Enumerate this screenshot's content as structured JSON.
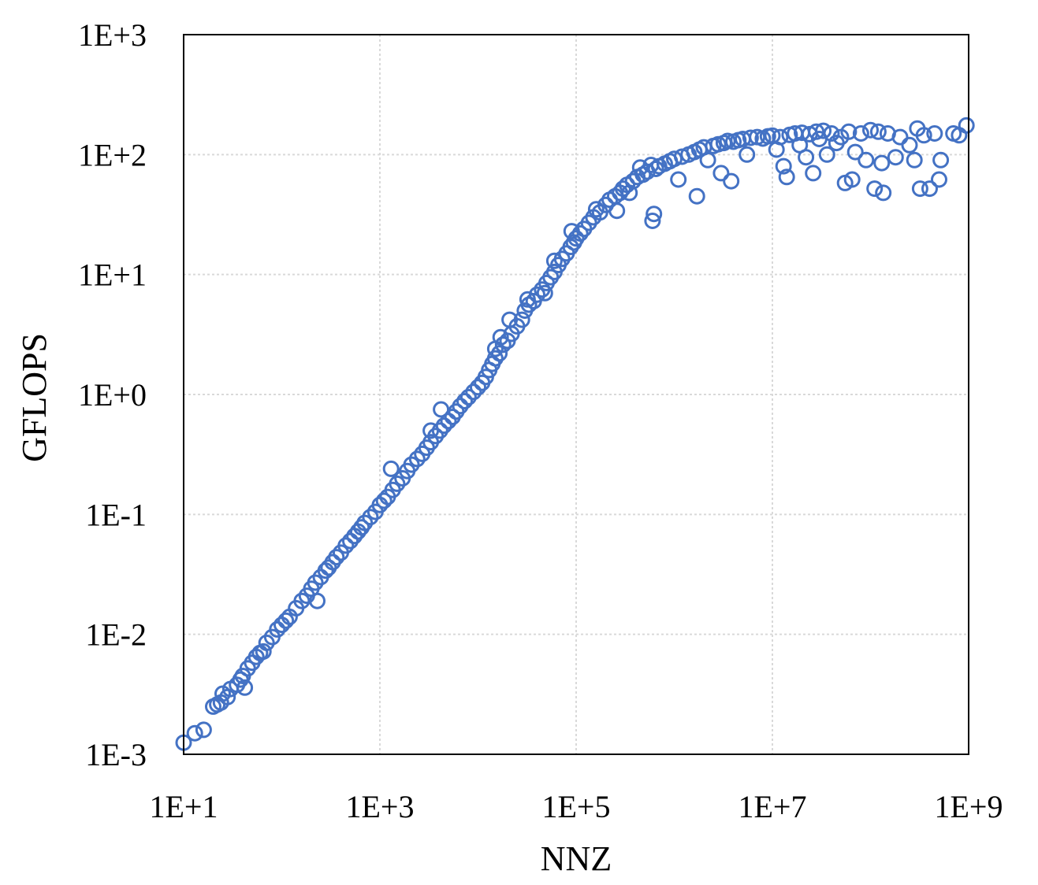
{
  "chart_data": {
    "type": "scatter",
    "xlabel": "NNZ",
    "ylabel": "GFLOPS",
    "x_scale": "log",
    "y_scale": "log",
    "xlim": [
      10,
      1000000000
    ],
    "ylim": [
      0.001,
      1000
    ],
    "x_ticks": [
      {
        "value": 10,
        "label": "1E+1"
      },
      {
        "value": 1000,
        "label": "1E+3"
      },
      {
        "value": 100000,
        "label": "1E+5"
      },
      {
        "value": 10000000,
        "label": "1E+7"
      },
      {
        "value": 1000000000,
        "label": "1E+9"
      }
    ],
    "y_ticks": [
      {
        "value": 0.001,
        "label": "1E-3"
      },
      {
        "value": 0.01,
        "label": "1E-2"
      },
      {
        "value": 0.1,
        "label": "1E-1"
      },
      {
        "value": 1,
        "label": "1E+0"
      },
      {
        "value": 10,
        "label": "1E+1"
      },
      {
        "value": 100,
        "label": "1E+2"
      },
      {
        "value": 1000,
        "label": "1E+3"
      }
    ],
    "grid": true,
    "marker_color": "#4472c4",
    "series": [
      {
        "points": [
          [
            10,
            0.00125
          ],
          [
            13,
            0.0015
          ],
          [
            16,
            0.0016
          ],
          [
            20,
            0.0025
          ],
          [
            22,
            0.0026
          ],
          [
            24,
            0.0027
          ],
          [
            25,
            0.0032
          ],
          [
            28,
            0.003
          ],
          [
            30,
            0.0035
          ],
          [
            35,
            0.0038
          ],
          [
            38,
            0.0042
          ],
          [
            40,
            0.0045
          ],
          [
            42,
            0.0036
          ],
          [
            45,
            0.0052
          ],
          [
            50,
            0.0058
          ],
          [
            55,
            0.0065
          ],
          [
            60,
            0.007
          ],
          [
            65,
            0.0072
          ],
          [
            70,
            0.0085
          ],
          [
            80,
            0.0095
          ],
          [
            90,
            0.011
          ],
          [
            100,
            0.012
          ],
          [
            110,
            0.013
          ],
          [
            120,
            0.014
          ],
          [
            140,
            0.0165
          ],
          [
            160,
            0.019
          ],
          [
            180,
            0.021
          ],
          [
            200,
            0.024
          ],
          [
            220,
            0.027
          ],
          [
            230,
            0.019
          ],
          [
            250,
            0.03
          ],
          [
            280,
            0.034
          ],
          [
            300,
            0.036
          ],
          [
            330,
            0.04
          ],
          [
            360,
            0.044
          ],
          [
            400,
            0.048
          ],
          [
            450,
            0.055
          ],
          [
            500,
            0.06
          ],
          [
            550,
            0.066
          ],
          [
            600,
            0.072
          ],
          [
            650,
            0.078
          ],
          [
            700,
            0.085
          ],
          [
            800,
            0.095
          ],
          [
            900,
            0.105
          ],
          [
            1000,
            0.12
          ],
          [
            1100,
            0.13
          ],
          [
            1200,
            0.14
          ],
          [
            1350,
            0.16
          ],
          [
            1500,
            0.18
          ],
          [
            1300,
            0.24
          ],
          [
            1700,
            0.2
          ],
          [
            1900,
            0.23
          ],
          [
            2100,
            0.26
          ],
          [
            2400,
            0.29
          ],
          [
            2700,
            0.32
          ],
          [
            3000,
            0.36
          ],
          [
            3300,
            0.4
          ],
          [
            3700,
            0.45
          ],
          [
            3300,
            0.5
          ],
          [
            4100,
            0.5
          ],
          [
            4500,
            0.55
          ],
          [
            4200,
            0.75
          ],
          [
            5000,
            0.6
          ],
          [
            5500,
            0.65
          ],
          [
            6000,
            0.72
          ],
          [
            6600,
            0.8
          ],
          [
            7300,
            0.88
          ],
          [
            8000,
            0.95
          ],
          [
            9000,
            1.05
          ],
          [
            10000,
            1.15
          ],
          [
            11000,
            1.25
          ],
          [
            12000,
            1.4
          ],
          [
            13000,
            1.6
          ],
          [
            14000,
            1.8
          ],
          [
            15000,
            2.0
          ],
          [
            15000,
            2.4
          ],
          [
            16500,
            2.2
          ],
          [
            18000,
            2.6
          ],
          [
            17000,
            3.0
          ],
          [
            20000,
            2.8
          ],
          [
            22000,
            3.2
          ],
          [
            21000,
            4.2
          ],
          [
            25000,
            3.7
          ],
          [
            28000,
            4.2
          ],
          [
            30000,
            5.0
          ],
          [
            33000,
            5.6
          ],
          [
            32000,
            6.2
          ],
          [
            37000,
            6.0
          ],
          [
            40000,
            6.8
          ],
          [
            45000,
            7.5
          ],
          [
            50000,
            8.5
          ],
          [
            48000,
            7.0
          ],
          [
            55000,
            9.5
          ],
          [
            60000,
            10.5
          ],
          [
            60000,
            13.0
          ],
          [
            66000,
            12.0
          ],
          [
            72000,
            13.5
          ],
          [
            80000,
            15.0
          ],
          [
            88000,
            17.0
          ],
          [
            95000,
            18.5
          ],
          [
            100000,
            20.0
          ],
          [
            90000,
            23.0
          ],
          [
            110000,
            22.0
          ],
          [
            120000,
            24.0
          ],
          [
            135000,
            27.0
          ],
          [
            150000,
            30.0
          ],
          [
            160000,
            35.0
          ],
          [
            175000,
            33.0
          ],
          [
            200000,
            38.0
          ],
          [
            220000,
            42.0
          ],
          [
            250000,
            45.0
          ],
          [
            260000,
            34.0
          ],
          [
            280000,
            48.0
          ],
          [
            300000,
            52.0
          ],
          [
            330000,
            56.0
          ],
          [
            350000,
            48.0
          ],
          [
            380000,
            60.0
          ],
          [
            420000,
            65.0
          ],
          [
            450000,
            78.0
          ],
          [
            480000,
            68.0
          ],
          [
            530000,
            72.0
          ],
          [
            580000,
            82.0
          ],
          [
            600000,
            28.0
          ],
          [
            620000,
            32.0
          ],
          [
            650000,
            76.0
          ],
          [
            700000,
            80.0
          ],
          [
            800000,
            84.0
          ],
          [
            900000,
            88.0
          ],
          [
            1000000,
            92.0
          ],
          [
            1100000,
            62.0
          ],
          [
            1200000,
            96.0
          ],
          [
            1400000,
            100.0
          ],
          [
            1600000,
            105.0
          ],
          [
            1700000,
            45.0
          ],
          [
            1800000,
            110.0
          ],
          [
            2000000,
            115.0
          ],
          [
            2200000,
            90.0
          ],
          [
            2500000,
            118.0
          ],
          [
            2800000,
            122.0
          ],
          [
            3000000,
            70.0
          ],
          [
            3200000,
            125.0
          ],
          [
            3500000,
            130.0
          ],
          [
            3800000,
            60.0
          ],
          [
            4000000,
            128.0
          ],
          [
            4500000,
            132.0
          ],
          [
            5000000,
            135.0
          ],
          [
            5500000,
            100.0
          ],
          [
            6000000,
            138.0
          ],
          [
            7000000,
            140.0
          ],
          [
            8000000,
            136.0
          ],
          [
            9000000,
            142.0
          ],
          [
            10000000,
            144.0
          ],
          [
            11000000,
            110.0
          ],
          [
            12000000,
            140.0
          ],
          [
            13000000,
            80.0
          ],
          [
            14000000,
            65.0
          ],
          [
            15000000,
            146.0
          ],
          [
            17000000,
            150.0
          ],
          [
            19000000,
            120.0
          ],
          [
            20000000,
            152.0
          ],
          [
            22000000,
            95.0
          ],
          [
            24000000,
            148.0
          ],
          [
            26000000,
            70.0
          ],
          [
            28000000,
            155.0
          ],
          [
            30000000,
            135.0
          ],
          [
            33000000,
            158.0
          ],
          [
            36000000,
            100.0
          ],
          [
            40000000,
            150.0
          ],
          [
            45000000,
            125.0
          ],
          [
            50000000,
            140.0
          ],
          [
            55000000,
            58.0
          ],
          [
            60000000,
            155.0
          ],
          [
            65000000,
            62.0
          ],
          [
            70000000,
            105.0
          ],
          [
            80000000,
            150.0
          ],
          [
            90000000,
            90.0
          ],
          [
            100000000,
            160.0
          ],
          [
            110000000,
            52.0
          ],
          [
            120000000,
            155.0
          ],
          [
            130000000,
            85.0
          ],
          [
            135000000,
            48.0
          ],
          [
            150000000,
            150.0
          ],
          [
            180000000,
            95.0
          ],
          [
            200000000,
            140.0
          ],
          [
            250000000,
            120.0
          ],
          [
            280000000,
            90.0
          ],
          [
            300000000,
            165.0
          ],
          [
            320000000,
            52.0
          ],
          [
            350000000,
            145.0
          ],
          [
            400000000,
            52.0
          ],
          [
            450000000,
            150.0
          ],
          [
            500000000,
            62.0
          ],
          [
            520000000,
            90.0
          ],
          [
            700000000,
            150.0
          ],
          [
            800000000,
            145.0
          ],
          [
            950000000,
            175.0
          ]
        ]
      }
    ]
  }
}
